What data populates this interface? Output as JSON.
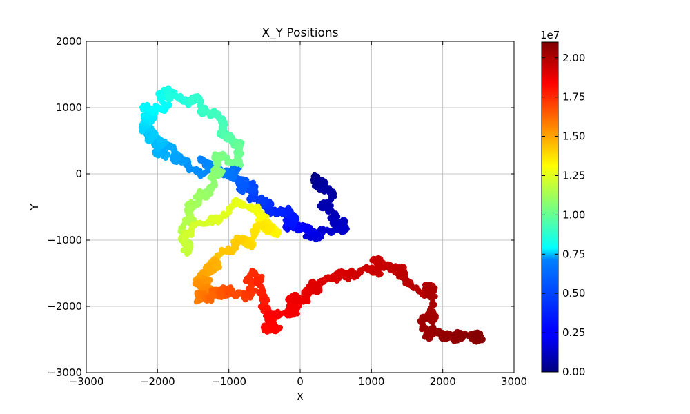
{
  "chart_data": {
    "type": "scatter",
    "title": "X_Y Positions",
    "xlabel": "X",
    "ylabel": "Y",
    "xlim": [
      -3000,
      3000
    ],
    "ylim": [
      -3000,
      2000
    ],
    "xticks": [
      -3000,
      -2000,
      -1000,
      0,
      1000,
      2000,
      3000
    ],
    "yticks": [
      -3000,
      -2000,
      -1000,
      0,
      1000,
      2000
    ],
    "xtick_labels": [
      "−3000",
      "−2000",
      "−1000",
      "0",
      "1000",
      "2000",
      "3000"
    ],
    "ytick_labels": [
      "−3000",
      "−2000",
      "−1000",
      "0",
      "1000",
      "2000"
    ],
    "grid": true,
    "colorbar": {
      "range": [
        0,
        21000000
      ],
      "ticks": [
        0,
        2500000,
        5000000,
        7500000,
        10000000,
        12500000,
        15000000,
        17500000,
        20000000
      ],
      "tick_labels": [
        "0.00",
        "0.25",
        "0.50",
        "0.75",
        "1.00",
        "1.25",
        "1.50",
        "1.75",
        "2.00"
      ],
      "offset_label": "1e7",
      "colormap": "jet"
    },
    "trajectory": [
      {
        "x": 180,
        "y": -80,
        "c": 0
      },
      {
        "x": 350,
        "y": -300,
        "c": 700000
      },
      {
        "x": 480,
        "y": -800,
        "c": 1400000
      },
      {
        "x": 150,
        "y": -900,
        "c": 2100000
      },
      {
        "x": -100,
        "y": -700,
        "c": 2800000
      },
      {
        "x": -450,
        "y": -450,
        "c": 3500000
      },
      {
        "x": -700,
        "y": -250,
        "c": 4200000
      },
      {
        "x": -900,
        "y": 0,
        "c": 4900000
      },
      {
        "x": -1700,
        "y": 100,
        "c": 5600000
      },
      {
        "x": -1950,
        "y": 350,
        "c": 6300000
      },
      {
        "x": -2050,
        "y": 650,
        "c": 7000000
      },
      {
        "x": -2150,
        "y": 950,
        "c": 7700000
      },
      {
        "x": -1700,
        "y": 1250,
        "c": 8400000
      },
      {
        "x": -1300,
        "y": 1000,
        "c": 9100000
      },
      {
        "x": -800,
        "y": 450,
        "c": 9800000
      },
      {
        "x": -1100,
        "y": 100,
        "c": 10500000
      },
      {
        "x": -1450,
        "y": -450,
        "c": 11200000
      },
      {
        "x": -1700,
        "y": -1100,
        "c": 11900000
      },
      {
        "x": -900,
        "y": -500,
        "c": 12600000
      },
      {
        "x": -300,
        "y": -800,
        "c": 13300000
      },
      {
        "x": -800,
        "y": -1050,
        "c": 14000000
      },
      {
        "x": -1200,
        "y": -1300,
        "c": 14700000
      },
      {
        "x": -1450,
        "y": -1600,
        "c": 15400000
      },
      {
        "x": -1350,
        "y": -1900,
        "c": 16100000
      },
      {
        "x": -950,
        "y": -1900,
        "c": 16800000
      },
      {
        "x": -550,
        "y": -1650,
        "c": 17500000
      },
      {
        "x": -450,
        "y": -2300,
        "c": 18200000
      },
      {
        "x": -150,
        "y": -2100,
        "c": 18500000
      },
      {
        "x": 50,
        "y": -1850,
        "c": 18800000
      },
      {
        "x": 400,
        "y": -1600,
        "c": 19100000
      },
      {
        "x": 1050,
        "y": -1400,
        "c": 19400000
      },
      {
        "x": 1500,
        "y": -1550,
        "c": 19700000
      },
      {
        "x": 1900,
        "y": -1700,
        "c": 20000000
      },
      {
        "x": 1750,
        "y": -2250,
        "c": 20300000
      },
      {
        "x": 2100,
        "y": -2500,
        "c": 20600000
      },
      {
        "x": 2600,
        "y": -2400,
        "c": 20900000
      }
    ]
  }
}
